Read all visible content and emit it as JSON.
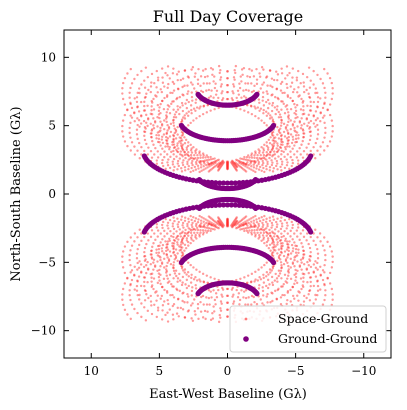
{
  "chart_data": {
    "type": "scatter",
    "title": "Full Day Coverage",
    "xlabel": "East-West Baseline (Gλ)",
    "ylabel": "North-South Baseline (Gλ)",
    "xlim": [
      12,
      -12
    ],
    "ylim": [
      -12,
      12
    ],
    "x_ticks": [
      10,
      5,
      0,
      -5,
      -10
    ],
    "y_ticks": [
      10,
      5,
      0,
      -5,
      -10
    ],
    "x_tick_labels": [
      "10",
      "5",
      "0",
      "−5",
      "−10"
    ],
    "y_tick_labels": [
      "10",
      "5",
      "0",
      "−5",
      "−10"
    ],
    "grid": false,
    "legend_placement": "lower-right",
    "series": [
      {
        "name": "Space-Ground",
        "color": "#ff2020",
        "marker_size": "small",
        "description_extent": {
          "x_range": [
            -8.3,
            8.3
          ],
          "y_range": [
            -9.3,
            9.3
          ]
        }
      },
      {
        "name": "Ground-Ground",
        "color": "#800080",
        "marker_size": "large",
        "arcs": [
          {
            "cx": 0,
            "cy": 7.7,
            "rx": 2.3,
            "ry": 1.2,
            "from": 200,
            "to": 340
          },
          {
            "cx": 0,
            "cy": -7.7,
            "rx": 2.3,
            "ry": 1.2,
            "from": 20,
            "to": 160
          },
          {
            "cx": 0,
            "cy": 5.4,
            "rx": 3.5,
            "ry": 1.5,
            "from": 195,
            "to": 345
          },
          {
            "cx": 0,
            "cy": -5.4,
            "rx": 3.5,
            "ry": 1.5,
            "from": 15,
            "to": 165
          },
          {
            "cx": 0,
            "cy": 3.2,
            "rx": 6.2,
            "ry": 2.4,
            "from": 190,
            "to": 350
          },
          {
            "cx": 0,
            "cy": -3.2,
            "rx": 6.2,
            "ry": 2.4,
            "from": 10,
            "to": 170
          },
          {
            "cx": 0,
            "cy": 1.4,
            "rx": 2.2,
            "ry": 1.0,
            "from": 200,
            "to": 340
          },
          {
            "cx": 0,
            "cy": -1.4,
            "rx": 2.2,
            "ry": 1.0,
            "from": 20,
            "to": 160
          }
        ]
      }
    ]
  }
}
